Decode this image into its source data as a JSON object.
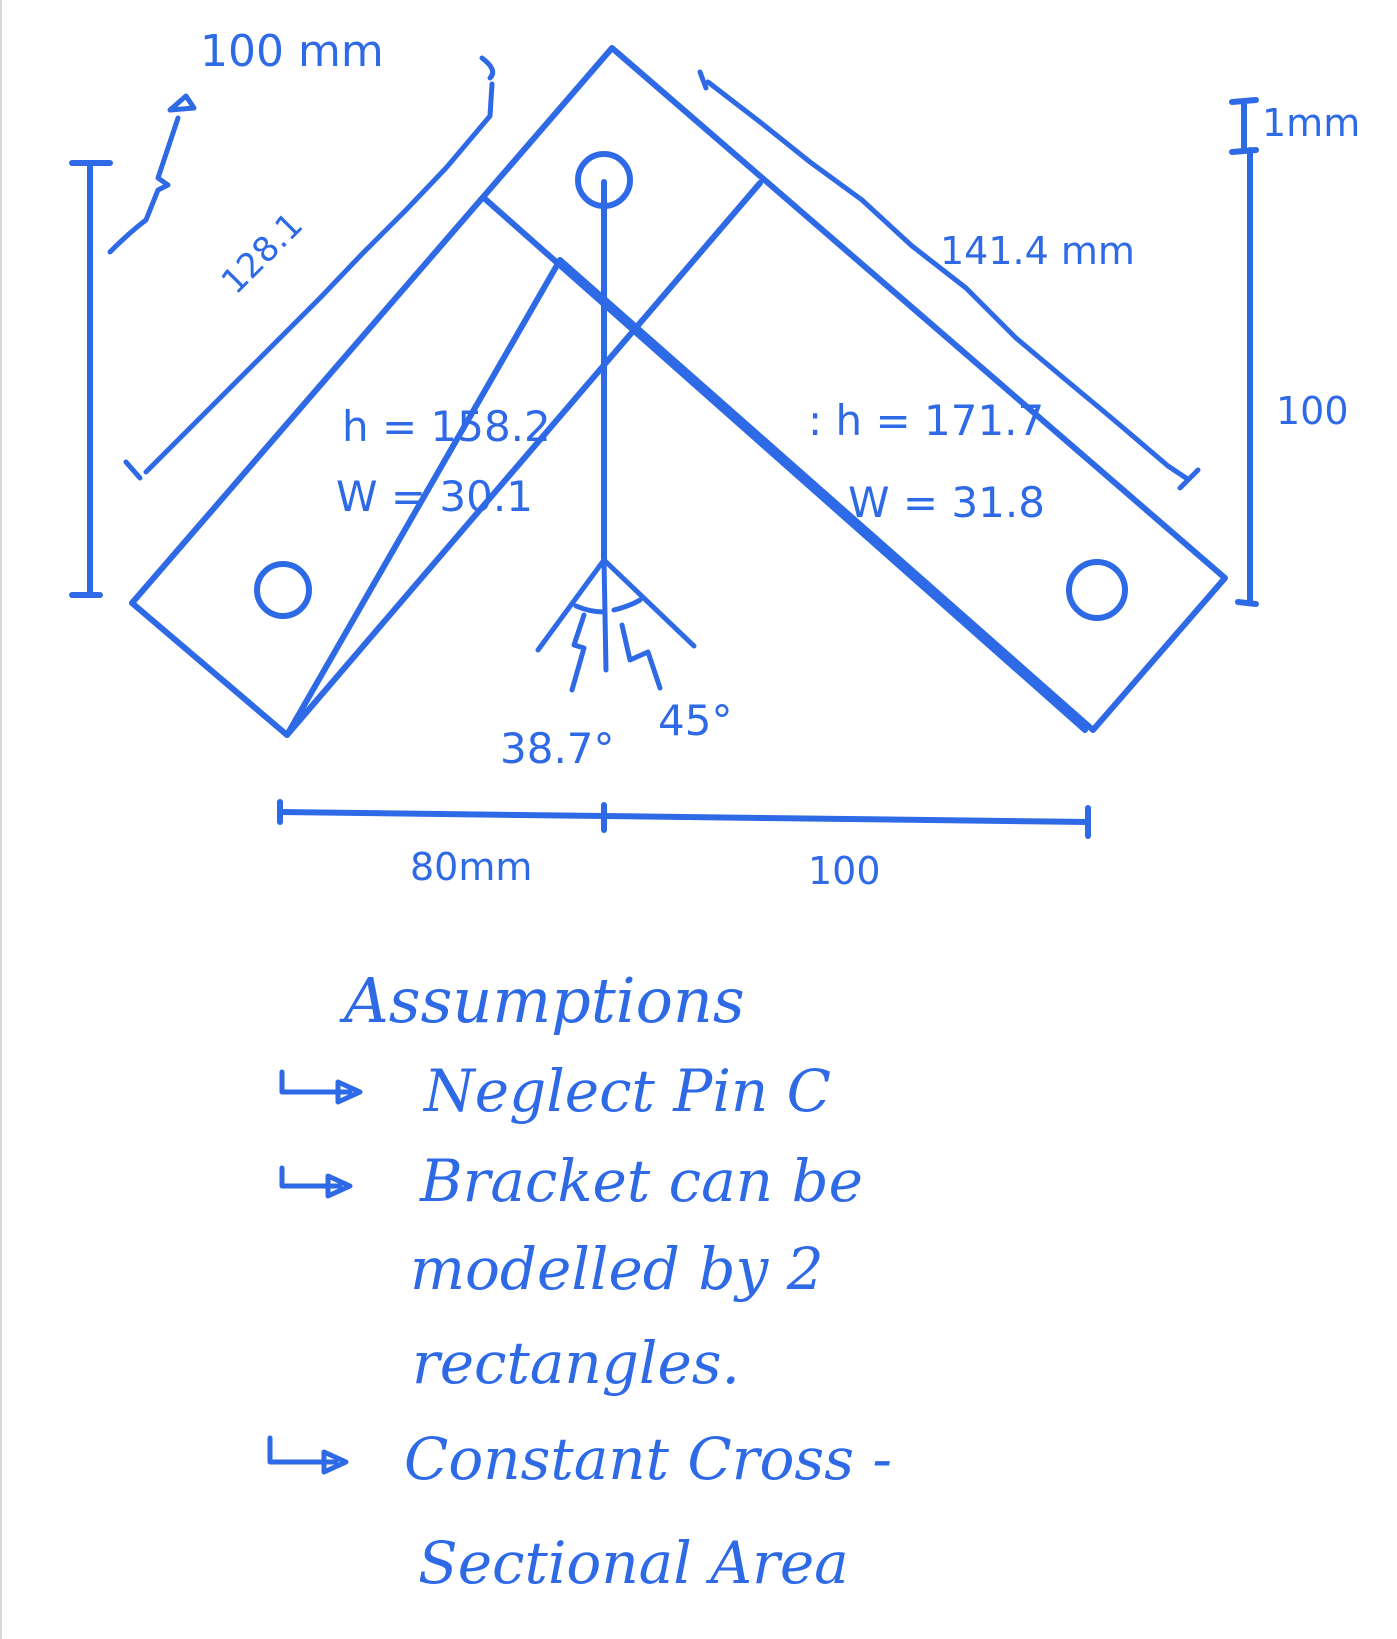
{
  "labels": {
    "dim_100mm_top": "100 mm",
    "dim_128": "128.1",
    "dim_141": "141.4 mm",
    "dim_1mm": "1mm",
    "dim_100_right": "100",
    "left_h": "h = 158.2",
    "left_w": "W = 30.1",
    "right_h": ": h = 171.7",
    "right_w": "W = 31.8",
    "angle_left": "38.7°",
    "angle_right": "45°",
    "dim_80": "80mm",
    "dim_100_bottom": "100"
  },
  "assumptions": {
    "heading": "Assumptions",
    "items": [
      "Neglect Pin C",
      "Bracket can be",
      "modelled by 2",
      "rectangles.",
      "Constant Cross -",
      "Sectional Area"
    ]
  },
  "ink_color": "#2f6ae6"
}
